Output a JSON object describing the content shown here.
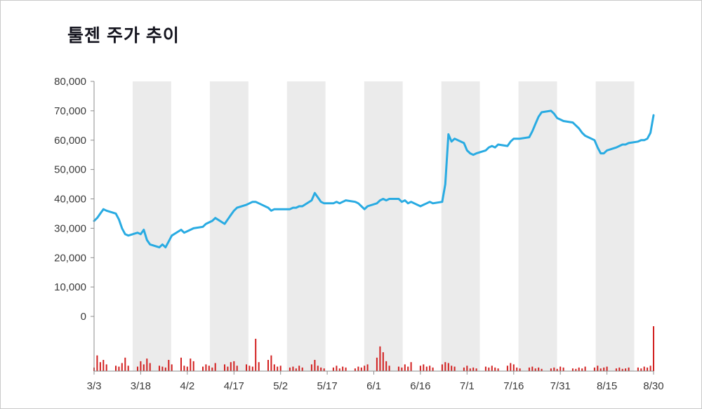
{
  "title": "툴젠 주가 추이",
  "chart_data": {
    "type": "line",
    "title": "툴젠 주가 추이",
    "description": "Daily stock closing price (blue line, left axis in KRW) with relative trading volume bars (red, unlabeled) along the bottom.",
    "line_color": "#29abe2",
    "volume_color": "#d21f1f",
    "band_color": "#ebebeb",
    "axis_color": "#8c8c8c",
    "label_color": "#3a3a3a",
    "x_axis": {
      "unit": "days after 3/3",
      "min": 0,
      "max": 180
    },
    "x_ticks": [
      {
        "day": 0,
        "label": "3/3"
      },
      {
        "day": 15,
        "label": "3/18"
      },
      {
        "day": 30,
        "label": "4/2"
      },
      {
        "day": 45,
        "label": "4/17"
      },
      {
        "day": 60,
        "label": "5/2"
      },
      {
        "day": 75,
        "label": "5/17"
      },
      {
        "day": 90,
        "label": "6/1"
      },
      {
        "day": 105,
        "label": "6/16"
      },
      {
        "day": 120,
        "label": "7/1"
      },
      {
        "day": 135,
        "label": "7/16"
      },
      {
        "day": 150,
        "label": "7/31"
      },
      {
        "day": 165,
        "label": "8/15"
      },
      {
        "day": 180,
        "label": "8/30"
      }
    ],
    "y_axis": {
      "min": 0,
      "max": 80000,
      "step": 10000,
      "tick_labels": [
        "0",
        "10,000",
        "20,000",
        "30,000",
        "40,000",
        "50,000",
        "60,000",
        "70,000",
        "80,000"
      ]
    },
    "background_bands": {
      "count": 15,
      "pattern": [
        "#ffffff",
        "#ebebeb"
      ]
    },
    "point_format": [
      "day_offset",
      "price_krw",
      "volume_relative_0_100"
    ],
    "points": [
      [
        0,
        32500,
        8
      ],
      [
        1,
        33500,
        35
      ],
      [
        2,
        35000,
        20
      ],
      [
        3,
        36500,
        25
      ],
      [
        4,
        36000,
        15
      ],
      [
        7,
        35000,
        12
      ],
      [
        8,
        33000,
        10
      ],
      [
        9,
        30000,
        18
      ],
      [
        10,
        28000,
        30
      ],
      [
        11,
        27500,
        12
      ],
      [
        14,
        28500,
        10
      ],
      [
        15,
        28000,
        22
      ],
      [
        16,
        29500,
        15
      ],
      [
        17,
        26000,
        28
      ],
      [
        18,
        24500,
        18
      ],
      [
        21,
        23500,
        12
      ],
      [
        22,
        24500,
        10
      ],
      [
        23,
        23500,
        8
      ],
      [
        24,
        25500,
        25
      ],
      [
        25,
        27500,
        15
      ],
      [
        28,
        29500,
        30
      ],
      [
        29,
        28500,
        12
      ],
      [
        30,
        29000,
        10
      ],
      [
        31,
        29500,
        28
      ],
      [
        32,
        30000,
        22
      ],
      [
        35,
        30500,
        10
      ],
      [
        36,
        31500,
        15
      ],
      [
        37,
        32000,
        12
      ],
      [
        38,
        32500,
        8
      ],
      [
        39,
        33500,
        18
      ],
      [
        42,
        31500,
        15
      ],
      [
        43,
        33000,
        10
      ],
      [
        44,
        34500,
        20
      ],
      [
        45,
        36000,
        22
      ],
      [
        46,
        37000,
        12
      ],
      [
        49,
        38000,
        15
      ],
      [
        50,
        38500,
        12
      ],
      [
        51,
        39000,
        10
      ],
      [
        52,
        39000,
        72
      ],
      [
        53,
        38500,
        20
      ],
      [
        56,
        37000,
        25
      ],
      [
        57,
        36000,
        35
      ],
      [
        58,
        36500,
        15
      ],
      [
        59,
        36500,
        10
      ],
      [
        60,
        36500,
        12
      ],
      [
        63,
        36500,
        8
      ],
      [
        64,
        37000,
        10
      ],
      [
        65,
        37000,
        6
      ],
      [
        66,
        37500,
        12
      ],
      [
        67,
        37500,
        8
      ],
      [
        70,
        39500,
        15
      ],
      [
        71,
        42000,
        25
      ],
      [
        72,
        40500,
        12
      ],
      [
        73,
        39000,
        8
      ],
      [
        74,
        38500,
        6
      ],
      [
        77,
        38500,
        8
      ],
      [
        78,
        39000,
        12
      ],
      [
        79,
        38500,
        6
      ],
      [
        80,
        39000,
        10
      ],
      [
        81,
        39500,
        8
      ],
      [
        84,
        39000,
        6
      ],
      [
        85,
        38500,
        10
      ],
      [
        86,
        37500,
        8
      ],
      [
        87,
        36500,
        12
      ],
      [
        88,
        37500,
        15
      ],
      [
        91,
        38500,
        30
      ],
      [
        92,
        39500,
        55
      ],
      [
        93,
        40000,
        42
      ],
      [
        94,
        39500,
        22
      ],
      [
        95,
        40000,
        12
      ],
      [
        98,
        40000,
        10
      ],
      [
        99,
        39000,
        8
      ],
      [
        100,
        39500,
        15
      ],
      [
        101,
        38500,
        10
      ],
      [
        102,
        39000,
        20
      ],
      [
        105,
        37500,
        12
      ],
      [
        106,
        38000,
        15
      ],
      [
        107,
        38500,
        10
      ],
      [
        108,
        39000,
        12
      ],
      [
        109,
        38500,
        8
      ],
      [
        112,
        39000,
        15
      ],
      [
        113,
        45000,
        20
      ],
      [
        114,
        62000,
        18
      ],
      [
        115,
        59500,
        12
      ],
      [
        116,
        60500,
        10
      ],
      [
        119,
        59000,
        8
      ],
      [
        120,
        56500,
        12
      ],
      [
        121,
        55500,
        6
      ],
      [
        122,
        55000,
        8
      ],
      [
        123,
        55500,
        6
      ],
      [
        126,
        56500,
        10
      ],
      [
        127,
        57500,
        8
      ],
      [
        128,
        58000,
        12
      ],
      [
        129,
        57500,
        8
      ],
      [
        130,
        58500,
        6
      ],
      [
        133,
        58000,
        12
      ],
      [
        134,
        59500,
        18
      ],
      [
        135,
        60500,
        15
      ],
      [
        136,
        60500,
        8
      ],
      [
        137,
        60500,
        6
      ],
      [
        140,
        61000,
        8
      ],
      [
        141,
        63000,
        10
      ],
      [
        142,
        65500,
        6
      ],
      [
        143,
        68000,
        8
      ],
      [
        144,
        69500,
        5
      ],
      [
        147,
        70000,
        6
      ],
      [
        148,
        69000,
        8
      ],
      [
        149,
        67500,
        5
      ],
      [
        150,
        67000,
        10
      ],
      [
        151,
        66500,
        8
      ],
      [
        154,
        66000,
        6
      ],
      [
        155,
        65000,
        5
      ],
      [
        156,
        64000,
        8
      ],
      [
        157,
        62500,
        6
      ],
      [
        158,
        61500,
        10
      ],
      [
        161,
        60000,
        8
      ],
      [
        162,
        57500,
        12
      ],
      [
        163,
        55500,
        6
      ],
      [
        164,
        55500,
        8
      ],
      [
        165,
        56500,
        10
      ],
      [
        168,
        57500,
        6
      ],
      [
        169,
        58000,
        8
      ],
      [
        170,
        58500,
        5
      ],
      [
        171,
        58500,
        6
      ],
      [
        172,
        59000,
        8
      ],
      [
        175,
        59500,
        8
      ],
      [
        176,
        60000,
        6
      ],
      [
        177,
        60000,
        10
      ],
      [
        178,
        60500,
        8
      ],
      [
        179,
        62500,
        12
      ],
      [
        180,
        68500,
        100
      ]
    ]
  }
}
